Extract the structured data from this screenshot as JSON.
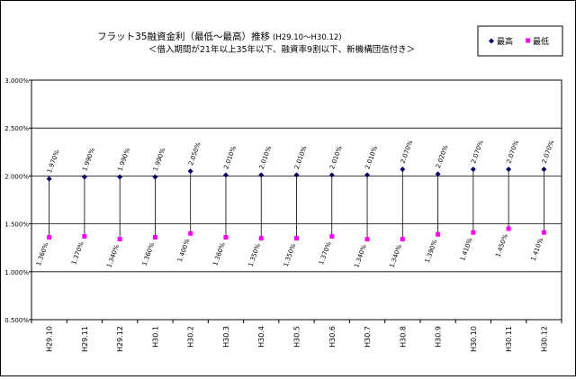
{
  "chart_data": {
    "type": "scatter",
    "title": "フラット35融資金利（最低～最高）推移",
    "title_suffix": "(H29.10～H30.12)",
    "subtitle": "＜借入期間が21年以上35年以下、融資率9割以下、新機構団信付き＞",
    "categories": [
      "H29.10",
      "H29.11",
      "H29.12",
      "H30.1",
      "H30.2",
      "H30.3",
      "H30.4",
      "H30.5",
      "H30.6",
      "H30.7",
      "H30.8",
      "H30.9",
      "H30.10",
      "H30.11",
      "H30.12"
    ],
    "series": [
      {
        "name": "最高",
        "color": "#000066",
        "marker": "diamond",
        "values": [
          1.97,
          1.99,
          1.99,
          1.99,
          2.05,
          2.01,
          2.01,
          2.01,
          2.01,
          2.01,
          2.07,
          2.02,
          2.07,
          2.07,
          2.07
        ],
        "labels": [
          "1.970%",
          "1.990%",
          "1.990%",
          "1.990%",
          "2.050%",
          "2.010%",
          "2.010%",
          "2.010%",
          "2.010%",
          "2.010%",
          "2.070%",
          "2.020%",
          "2.070%",
          "2.070%",
          "2.070%"
        ]
      },
      {
        "name": "最低",
        "color": "#ff00ff",
        "marker": "square",
        "values": [
          1.36,
          1.37,
          1.34,
          1.36,
          1.4,
          1.36,
          1.35,
          1.35,
          1.37,
          1.34,
          1.34,
          1.39,
          1.41,
          1.45,
          1.41
        ],
        "labels": [
          "1.360%",
          "1.370%",
          "1.340%",
          "1.360%",
          "1.400%",
          "1.360%",
          "1.350%",
          "1.350%",
          "1.370%",
          "1.340%",
          "1.340%",
          "1.390%",
          "1.410%",
          "1.450%",
          "1.410%"
        ]
      }
    ],
    "ylim": [
      0.5,
      3.0
    ],
    "yticks": [
      0.5,
      1.0,
      1.5,
      2.0,
      2.5,
      3.0
    ],
    "ytick_labels": [
      "0.500%",
      "1.000%",
      "1.500%",
      "2.000%",
      "2.500%",
      "3.000%"
    ],
    "grid": true,
    "legend": "top-right"
  }
}
